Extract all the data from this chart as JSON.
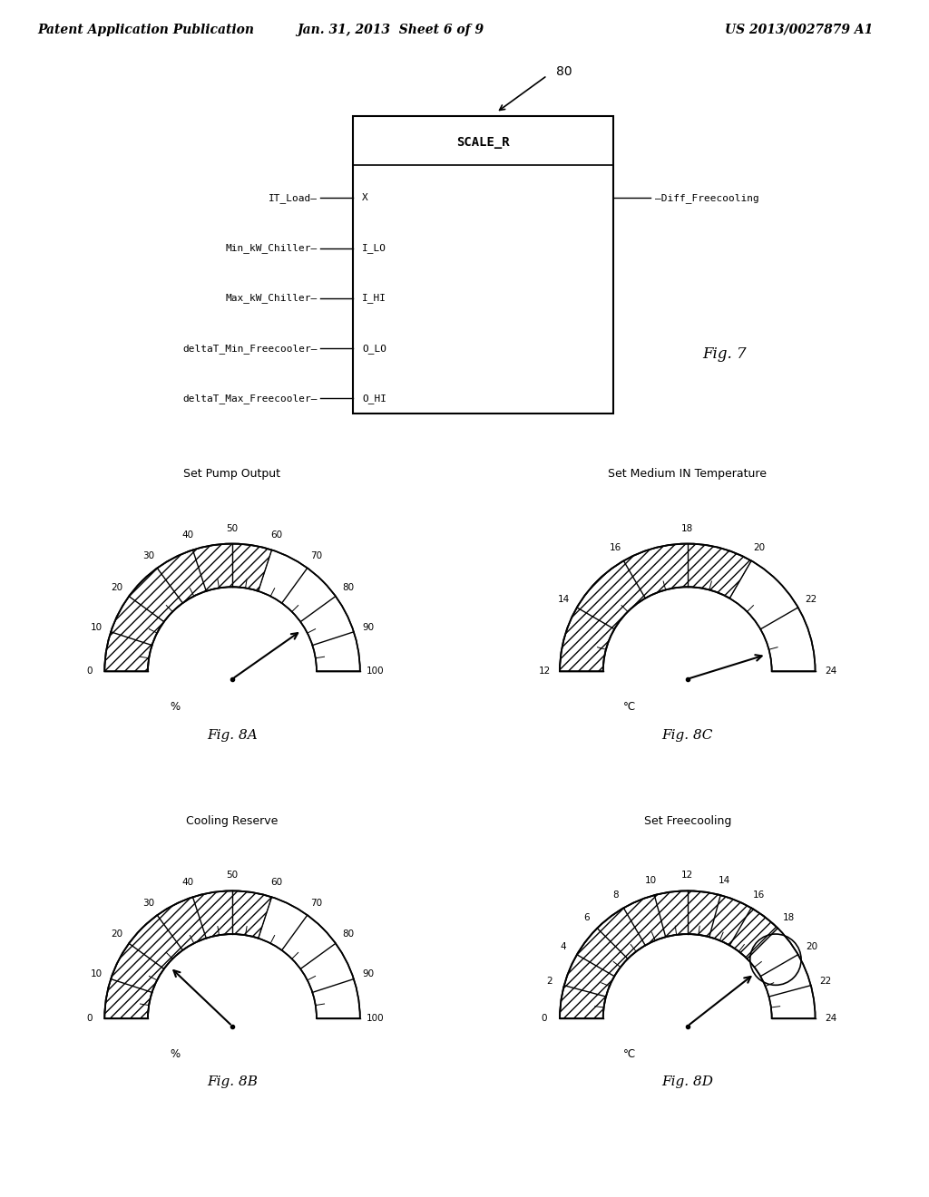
{
  "bg_color": "#ffffff",
  "header_text": "Patent Application Publication",
  "header_date": "Jan. 31, 2013  Sheet 6 of 9",
  "header_patent": "US 2013/0027879 A1",
  "block_label": "80",
  "block_title": "SCALE_R",
  "block_output": "Diff_Freecooling",
  "fig7_label": "Fig. 7",
  "gauge_8A_title": "Set Pump Output",
  "gauge_8A_ticks": [
    0,
    10,
    20,
    30,
    40,
    50,
    60,
    70,
    80,
    90,
    100
  ],
  "gauge_8A_unit": "%",
  "gauge_8A_needle_val": 83,
  "gauge_8A_hatch_lo": 0,
  "gauge_8A_hatch_hi": 60,
  "gauge_8A_fig": "Fig. 8A",
  "gauge_8B_title": "Cooling Reserve",
  "gauge_8B_ticks": [
    0,
    10,
    20,
    30,
    40,
    50,
    60,
    70,
    80,
    90,
    100
  ],
  "gauge_8B_unit": "%",
  "gauge_8B_needle_val": 22,
  "gauge_8B_hatch_lo": 0,
  "gauge_8B_hatch_hi": 60,
  "gauge_8B_fig": "Fig. 8B",
  "gauge_8C_title": "Set Medium IN Temperature",
  "gauge_8C_ticks": [
    12,
    14,
    16,
    18,
    20,
    22,
    24
  ],
  "gauge_8C_unit": "°C",
  "gauge_8C_min": 12,
  "gauge_8C_max": 24,
  "gauge_8C_needle_val": 23.2,
  "gauge_8C_hatch_lo": 12,
  "gauge_8C_hatch_hi": 20,
  "gauge_8C_fig": "Fig. 8C",
  "gauge_8D_title": "Set Freecooling",
  "gauge_8D_ticks": [
    0,
    2,
    4,
    6,
    8,
    10,
    12,
    14,
    16,
    18,
    20,
    22,
    24
  ],
  "gauge_8D_unit": "°C",
  "gauge_8D_min": 0,
  "gauge_8D_max": 24,
  "gauge_8D_needle_val": 19.5,
  "gauge_8D_hatch_lo": 0,
  "gauge_8D_hatch_hi": 18,
  "gauge_8D_circle_val": 19.5,
  "gauge_8D_fig": "Fig. 8D"
}
